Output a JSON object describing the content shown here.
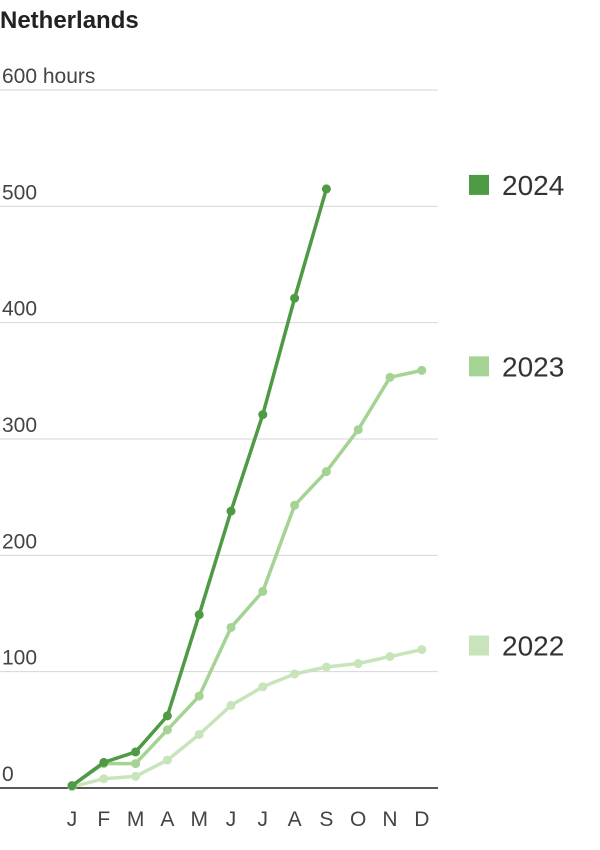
{
  "chart_data": {
    "type": "line",
    "title": "Netherlands",
    "categories": [
      "J",
      "F",
      "M",
      "A",
      "M",
      "J",
      "J",
      "A",
      "S",
      "O",
      "N",
      "D"
    ],
    "ylim": [
      0,
      600
    ],
    "yticks": [
      0,
      100,
      200,
      300,
      400,
      500,
      {
        "value": 600,
        "label": "600 hours"
      }
    ],
    "grid": true,
    "legend": "right",
    "series": [
      {
        "name": "2024",
        "color": "#4e9a45",
        "values": [
          2,
          22,
          31,
          62,
          149,
          238,
          321,
          421,
          515,
          null,
          null,
          null
        ]
      },
      {
        "name": "2023",
        "color": "#a4d393",
        "values": [
          2,
          21,
          21,
          50,
          79,
          138,
          169,
          243,
          272,
          308,
          353,
          359
        ]
      },
      {
        "name": "2022",
        "color": "#c8e4bb",
        "values": [
          1,
          8,
          10,
          24,
          46,
          71,
          87,
          98,
          104,
          107,
          113,
          119
        ]
      }
    ]
  }
}
